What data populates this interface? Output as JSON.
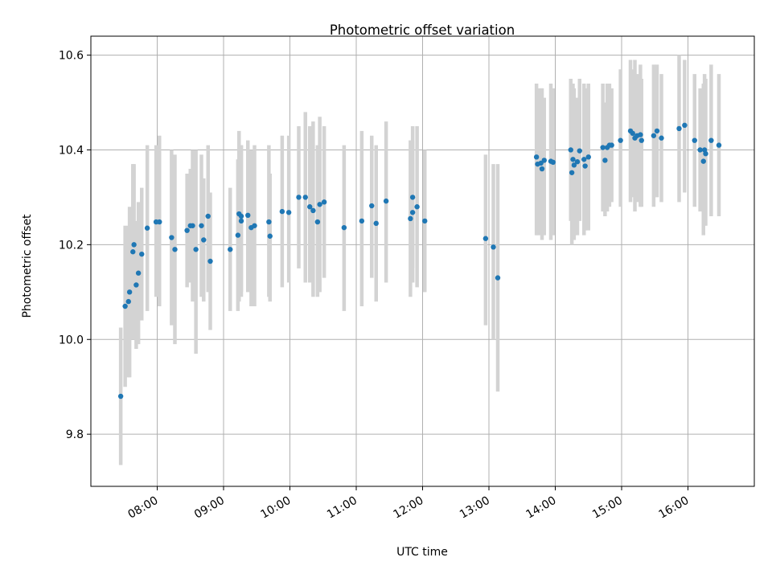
{
  "chart_data": {
    "type": "scatter",
    "title": "Photometric offset variation",
    "xlabel": "UTC time",
    "ylabel": "Photometric offset",
    "xlim": [
      "07:00",
      "17:00"
    ],
    "ylim": [
      9.69,
      10.64
    ],
    "x_ticks": [
      "08:00",
      "09:00",
      "10:00",
      "11:00",
      "12:00",
      "13:00",
      "14:00",
      "15:00",
      "16:00"
    ],
    "y_ticks": [
      "9.8",
      "10.0",
      "10.2",
      "10.4",
      "10.6"
    ],
    "grid": true,
    "colors": {
      "points": "#1f77b4",
      "errorbars": "#d3d3d3",
      "grid": "#b0b0b0"
    },
    "points": [
      {
        "x": "07:27",
        "y": 9.88,
        "lo": 9.735,
        "hi": 10.025
      },
      {
        "x": "07:31",
        "y": 10.07,
        "lo": 9.9,
        "hi": 10.24
      },
      {
        "x": "07:34",
        "y": 10.08,
        "lo": 9.92,
        "hi": 10.24
      },
      {
        "x": "07:35",
        "y": 10.1,
        "lo": 9.92,
        "hi": 10.28
      },
      {
        "x": "07:38",
        "y": 10.185,
        "lo": 10.0,
        "hi": 10.37
      },
      {
        "x": "07:39",
        "y": 10.2,
        "lo": 10.03,
        "hi": 10.37
      },
      {
        "x": "07:41",
        "y": 10.115,
        "lo": 9.98,
        "hi": 10.25
      },
      {
        "x": "07:43",
        "y": 10.14,
        "lo": 9.99,
        "hi": 10.29
      },
      {
        "x": "07:46",
        "y": 10.18,
        "lo": 10.04,
        "hi": 10.32
      },
      {
        "x": "07:51",
        "y": 10.235,
        "lo": 10.06,
        "hi": 10.41
      },
      {
        "x": "07:59",
        "y": 10.248,
        "lo": 10.09,
        "hi": 10.41
      },
      {
        "x": "08:02",
        "y": 10.248,
        "lo": 10.07,
        "hi": 10.43
      },
      {
        "x": "08:13",
        "y": 10.215,
        "lo": 10.03,
        "hi": 10.4
      },
      {
        "x": "08:16",
        "y": 10.19,
        "lo": 9.99,
        "hi": 10.39
      },
      {
        "x": "08:27",
        "y": 10.23,
        "lo": 10.11,
        "hi": 10.35
      },
      {
        "x": "08:30",
        "y": 10.24,
        "lo": 10.12,
        "hi": 10.36
      },
      {
        "x": "08:32",
        "y": 10.24,
        "lo": 10.08,
        "hi": 10.4
      },
      {
        "x": "08:35",
        "y": 10.19,
        "lo": 9.97,
        "hi": 10.4
      },
      {
        "x": "08:40",
        "y": 10.24,
        "lo": 10.09,
        "hi": 10.39
      },
      {
        "x": "08:42",
        "y": 10.21,
        "lo": 10.08,
        "hi": 10.34
      },
      {
        "x": "08:46",
        "y": 10.26,
        "lo": 10.1,
        "hi": 10.41
      },
      {
        "x": "08:48",
        "y": 10.165,
        "lo": 10.02,
        "hi": 10.31
      },
      {
        "x": "09:06",
        "y": 10.19,
        "lo": 10.06,
        "hi": 10.32
      },
      {
        "x": "09:13",
        "y": 10.22,
        "lo": 10.06,
        "hi": 10.38
      },
      {
        "x": "09:14",
        "y": 10.265,
        "lo": 10.08,
        "hi": 10.44
      },
      {
        "x": "09:16",
        "y": 10.26,
        "lo": 10.1,
        "hi": 10.41
      },
      {
        "x": "09:16",
        "y": 10.25,
        "lo": 10.09,
        "hi": 10.41
      },
      {
        "x": "09:22",
        "y": 10.262,
        "lo": 10.1,
        "hi": 10.42
      },
      {
        "x": "09:25",
        "y": 10.236,
        "lo": 10.07,
        "hi": 10.4
      },
      {
        "x": "09:28",
        "y": 10.24,
        "lo": 10.07,
        "hi": 10.41
      },
      {
        "x": "09:41",
        "y": 10.248,
        "lo": 10.09,
        "hi": 10.41
      },
      {
        "x": "09:42",
        "y": 10.218,
        "lo": 10.08,
        "hi": 10.35
      },
      {
        "x": "09:53",
        "y": 10.27,
        "lo": 10.11,
        "hi": 10.43
      },
      {
        "x": "09:59",
        "y": 10.268,
        "lo": 10.12,
        "hi": 10.43
      },
      {
        "x": "10:08",
        "y": 10.3,
        "lo": 10.15,
        "hi": 10.45
      },
      {
        "x": "10:14",
        "y": 10.3,
        "lo": 10.12,
        "hi": 10.48
      },
      {
        "x": "10:18",
        "y": 10.28,
        "lo": 10.12,
        "hi": 10.45
      },
      {
        "x": "10:21",
        "y": 10.272,
        "lo": 10.09,
        "hi": 10.46
      },
      {
        "x": "10:25",
        "y": 10.248,
        "lo": 10.09,
        "hi": 10.41
      },
      {
        "x": "10:27",
        "y": 10.285,
        "lo": 10.1,
        "hi": 10.47
      },
      {
        "x": "10:31",
        "y": 10.29,
        "lo": 10.13,
        "hi": 10.45
      },
      {
        "x": "10:49",
        "y": 10.236,
        "lo": 10.06,
        "hi": 10.41
      },
      {
        "x": "11:05",
        "y": 10.25,
        "lo": 10.07,
        "hi": 10.44
      },
      {
        "x": "11:14",
        "y": 10.282,
        "lo": 10.13,
        "hi": 10.43
      },
      {
        "x": "11:18",
        "y": 10.245,
        "lo": 10.08,
        "hi": 10.41
      },
      {
        "x": "11:27",
        "y": 10.292,
        "lo": 10.12,
        "hi": 10.46
      },
      {
        "x": "11:49",
        "y": 10.255,
        "lo": 10.09,
        "hi": 10.42
      },
      {
        "x": "11:51",
        "y": 10.3,
        "lo": 10.15,
        "hi": 10.45
      },
      {
        "x": "11:51",
        "y": 10.268,
        "lo": 10.12,
        "hi": 10.42
      },
      {
        "x": "11:55",
        "y": 10.28,
        "lo": 10.11,
        "hi": 10.45
      },
      {
        "x": "12:02",
        "y": 10.25,
        "lo": 10.1,
        "hi": 10.4
      },
      {
        "x": "12:57",
        "y": 10.213,
        "lo": 10.03,
        "hi": 10.39
      },
      {
        "x": "13:04",
        "y": 10.195,
        "lo": 10.0,
        "hi": 10.37
      },
      {
        "x": "13:08",
        "y": 10.13,
        "lo": 9.89,
        "hi": 10.37
      },
      {
        "x": "13:43",
        "y": 10.385,
        "lo": 10.22,
        "hi": 10.54
      },
      {
        "x": "13:44",
        "y": 10.37,
        "lo": 10.22,
        "hi": 10.53
      },
      {
        "x": "13:47",
        "y": 10.372,
        "lo": 10.22,
        "hi": 10.53
      },
      {
        "x": "13:48",
        "y": 10.36,
        "lo": 10.21,
        "hi": 10.53
      },
      {
        "x": "13:50",
        "y": 10.378,
        "lo": 10.22,
        "hi": 10.51
      },
      {
        "x": "13:56",
        "y": 10.376,
        "lo": 10.21,
        "hi": 10.54
      },
      {
        "x": "13:58",
        "y": 10.374,
        "lo": 10.22,
        "hi": 10.53
      },
      {
        "x": "14:14",
        "y": 10.4,
        "lo": 10.25,
        "hi": 10.55
      },
      {
        "x": "14:15",
        "y": 10.352,
        "lo": 10.2,
        "hi": 10.52
      },
      {
        "x": "14:16",
        "y": 10.38,
        "lo": 10.23,
        "hi": 10.54
      },
      {
        "x": "14:17",
        "y": 10.368,
        "lo": 10.21,
        "hi": 10.53
      },
      {
        "x": "14:20",
        "y": 10.375,
        "lo": 10.22,
        "hi": 10.51
      },
      {
        "x": "14:22",
        "y": 10.398,
        "lo": 10.25,
        "hi": 10.55
      },
      {
        "x": "14:26",
        "y": 10.38,
        "lo": 10.22,
        "hi": 10.54
      },
      {
        "x": "14:27",
        "y": 10.366,
        "lo": 10.23,
        "hi": 10.53
      },
      {
        "x": "14:30",
        "y": 10.385,
        "lo": 10.23,
        "hi": 10.54
      },
      {
        "x": "14:43",
        "y": 10.405,
        "lo": 10.27,
        "hi": 10.54
      },
      {
        "x": "14:45",
        "y": 10.378,
        "lo": 10.26,
        "hi": 10.5
      },
      {
        "x": "14:47",
        "y": 10.405,
        "lo": 10.27,
        "hi": 10.54
      },
      {
        "x": "14:49",
        "y": 10.41,
        "lo": 10.28,
        "hi": 10.54
      },
      {
        "x": "14:51",
        "y": 10.41,
        "lo": 10.29,
        "hi": 10.53
      },
      {
        "x": "14:59",
        "y": 10.42,
        "lo": 10.28,
        "hi": 10.57
      },
      {
        "x": "15:08",
        "y": 10.44,
        "lo": 10.29,
        "hi": 10.59
      },
      {
        "x": "15:10",
        "y": 10.435,
        "lo": 10.3,
        "hi": 10.57
      },
      {
        "x": "15:12",
        "y": 10.425,
        "lo": 10.27,
        "hi": 10.59
      },
      {
        "x": "15:14",
        "y": 10.43,
        "lo": 10.29,
        "hi": 10.56
      },
      {
        "x": "15:17",
        "y": 10.432,
        "lo": 10.28,
        "hi": 10.58
      },
      {
        "x": "15:18",
        "y": 10.42,
        "lo": 10.28,
        "hi": 10.55
      },
      {
        "x": "15:29",
        "y": 10.43,
        "lo": 10.28,
        "hi": 10.58
      },
      {
        "x": "15:32",
        "y": 10.44,
        "lo": 10.3,
        "hi": 10.58
      },
      {
        "x": "15:36",
        "y": 10.425,
        "lo": 10.29,
        "hi": 10.56
      },
      {
        "x": "15:52",
        "y": 10.445,
        "lo": 10.29,
        "hi": 10.6
      },
      {
        "x": "15:57",
        "y": 10.452,
        "lo": 10.31,
        "hi": 10.59
      },
      {
        "x": "16:06",
        "y": 10.42,
        "lo": 10.28,
        "hi": 10.56
      },
      {
        "x": "16:11",
        "y": 10.4,
        "lo": 10.27,
        "hi": 10.53
      },
      {
        "x": "16:14",
        "y": 10.376,
        "lo": 10.22,
        "hi": 10.54
      },
      {
        "x": "16:15",
        "y": 10.4,
        "lo": 10.24,
        "hi": 10.56
      },
      {
        "x": "16:16",
        "y": 10.392,
        "lo": 10.24,
        "hi": 10.55
      },
      {
        "x": "16:21",
        "y": 10.42,
        "lo": 10.26,
        "hi": 10.58
      },
      {
        "x": "16:28",
        "y": 10.41,
        "lo": 10.26,
        "hi": 10.56
      }
    ]
  }
}
